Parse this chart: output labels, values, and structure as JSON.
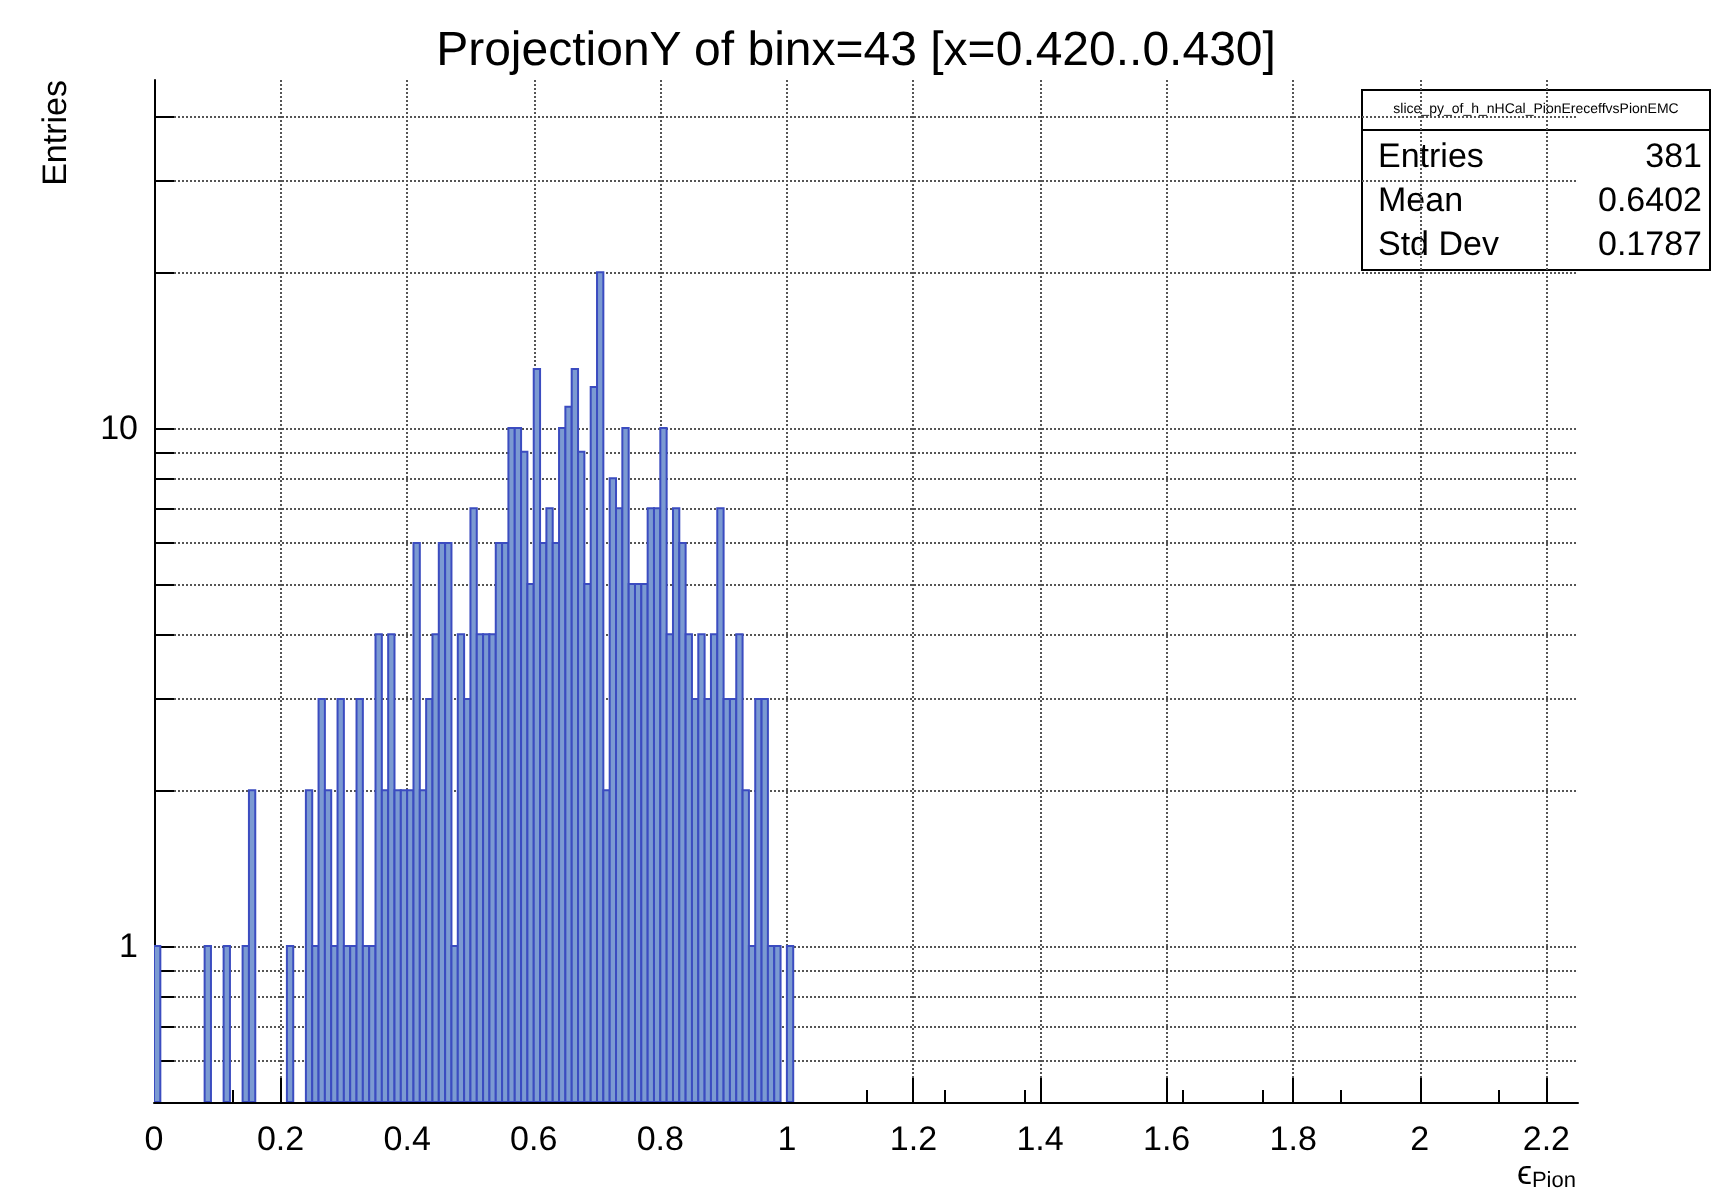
{
  "chart_data": {
    "type": "histogram",
    "title": "ProjectionY of binx=43 [x=0.420..0.430]",
    "xlabel": "ϵ$_{Pion}$",
    "ylabel": "Entries",
    "annotations": [
      "slice_py_of_h_nHCal_PionEreceffvsPionEMC",
      "Entries 381",
      "Mean 0.6402",
      "Std Dev 0.1787"
    ],
    "bins": [
      0,
      0.01,
      0.02,
      0.03,
      0.04,
      0.05,
      0.06,
      0.07,
      0.08,
      0.09,
      0.1,
      0.11,
      0.12,
      0.13,
      0.14,
      0.15,
      0.16,
      0.17,
      0.18,
      0.19,
      0.2,
      0.21,
      0.22,
      0.23,
      0.24,
      0.25,
      0.26,
      0.27,
      0.28,
      0.29,
      0.3,
      0.31,
      0.32,
      0.33,
      0.34,
      0.35,
      0.36,
      0.37,
      0.38,
      0.39,
      0.4,
      0.41,
      0.42,
      0.43,
      0.44,
      0.45,
      0.46,
      0.47,
      0.48,
      0.49,
      0.5,
      0.51,
      0.52,
      0.53,
      0.54,
      0.55,
      0.56,
      0.57,
      0.58,
      0.59,
      0.6,
      0.61,
      0.62,
      0.63,
      0.64,
      0.65,
      0.66,
      0.67,
      0.68,
      0.69,
      0.7,
      0.71,
      0.72,
      0.73,
      0.74,
      0.75,
      0.76,
      0.77,
      0.78,
      0.79,
      0.8,
      0.81,
      0.82,
      0.83,
      0.84,
      0.85,
      0.86,
      0.87,
      0.88,
      0.89,
      0.9,
      0.91,
      0.92,
      0.93,
      0.94,
      0.95,
      0.96,
      0.97,
      0.98,
      0.99,
      1,
      1.01
    ],
    "values": [
      1,
      null,
      null,
      null,
      null,
      null,
      null,
      null,
      1,
      null,
      null,
      1,
      null,
      null,
      1,
      2,
      null,
      null,
      null,
      null,
      null,
      1,
      null,
      null,
      2,
      1,
      3,
      2,
      1,
      3,
      1,
      1,
      3,
      1,
      1,
      4,
      2,
      4,
      2,
      2,
      2,
      6,
      2,
      3,
      4,
      6,
      6,
      1,
      4,
      3,
      7,
      4,
      4,
      4,
      6,
      6,
      10,
      10,
      9,
      5,
      13,
      6,
      7,
      6,
      10,
      11,
      13,
      9,
      5,
      12,
      20,
      2,
      8,
      7,
      10,
      5,
      5,
      5,
      7,
      7,
      10,
      4,
      7,
      6,
      4,
      3,
      4,
      3,
      4,
      7,
      3,
      3,
      4,
      2,
      1,
      3,
      3,
      1,
      1,
      null,
      1
    ],
    "color": "#7b9ad2",
    "log": "y",
    "grid": true,
    "xlim": [
      0,
      2.25
    ],
    "xticks": [
      0,
      0.2,
      0.4,
      0.6,
      0.8,
      1,
      1.2,
      1.4,
      1.6,
      1.8,
      2,
      2.2
    ],
    "ylim": [
      0.5,
      47
    ],
    "yticks": [
      {
        "value": 0.5,
        "label": null
      },
      {
        "value": 0.6,
        "label": null
      },
      {
        "value": 0.7,
        "label": null
      },
      {
        "value": 0.8,
        "label": null
      },
      {
        "value": 0.9,
        "label": null
      },
      1,
      {
        "value": 2,
        "label": null
      },
      {
        "value": 3,
        "label": null
      },
      {
        "value": 4,
        "label": null
      },
      {
        "value": 5,
        "label": null
      },
      {
        "value": 6,
        "label": null
      },
      {
        "value": 7,
        "label": null
      },
      {
        "value": 8,
        "label": null
      },
      {
        "value": 9,
        "label": null
      },
      10,
      {
        "value": 20,
        "label": null
      },
      {
        "value": 30,
        "label": null
      },
      {
        "value": 40,
        "label": null
      }
    ]
  }
}
